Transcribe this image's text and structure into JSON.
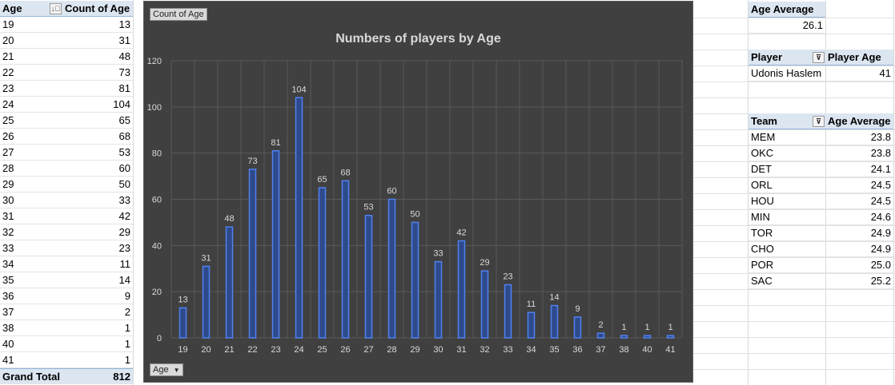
{
  "age_table": {
    "header_age": "Age",
    "header_count": "Count of Age",
    "rows": [
      {
        "age": "19",
        "count": "13"
      },
      {
        "age": "20",
        "count": "31"
      },
      {
        "age": "21",
        "count": "48"
      },
      {
        "age": "22",
        "count": "73"
      },
      {
        "age": "23",
        "count": "81"
      },
      {
        "age": "24",
        "count": "104"
      },
      {
        "age": "25",
        "count": "65"
      },
      {
        "age": "26",
        "count": "68"
      },
      {
        "age": "27",
        "count": "53"
      },
      {
        "age": "28",
        "count": "60"
      },
      {
        "age": "29",
        "count": "50"
      },
      {
        "age": "30",
        "count": "33"
      },
      {
        "age": "31",
        "count": "42"
      },
      {
        "age": "32",
        "count": "29"
      },
      {
        "age": "33",
        "count": "23"
      },
      {
        "age": "34",
        "count": "11"
      },
      {
        "age": "35",
        "count": "14"
      },
      {
        "age": "36",
        "count": "9"
      },
      {
        "age": "37",
        "count": "2"
      },
      {
        "age": "38",
        "count": "1"
      },
      {
        "age": "40",
        "count": "1"
      },
      {
        "age": "41",
        "count": "1"
      }
    ],
    "total_label": "Grand Total",
    "total_value": "812"
  },
  "chart": {
    "field_button_value": "Count of Age",
    "field_button_axis": "Age",
    "dropdown_icon": "dropdown-arrow-icon"
  },
  "chart_data": {
    "type": "bar",
    "title": "Numbers of players by Age",
    "categories": [
      "19",
      "20",
      "21",
      "22",
      "23",
      "24",
      "25",
      "26",
      "27",
      "28",
      "29",
      "30",
      "31",
      "32",
      "33",
      "34",
      "35",
      "36",
      "37",
      "38",
      "40",
      "41"
    ],
    "values": [
      13,
      31,
      48,
      73,
      81,
      104,
      65,
      68,
      53,
      60,
      50,
      33,
      42,
      29,
      23,
      11,
      14,
      9,
      2,
      1,
      1,
      1
    ],
    "ylim": [
      0,
      120
    ],
    "yticks": [
      "0",
      "20",
      "40",
      "60",
      "80",
      "100",
      "120"
    ],
    "grid": true,
    "legend": "none",
    "colors": {
      "background": "#404040",
      "bar_fill": "#2e4a8a",
      "bar_edge": "#4f81f0",
      "text": "#d9d9d9",
      "grid": "#595959"
    }
  },
  "age_average": {
    "label": "Age Average",
    "value": "26.1"
  },
  "player_table": {
    "header_player": "Player",
    "header_age": "Player Age",
    "rows": [
      {
        "player": "Udonis Haslem",
        "age": "41"
      }
    ]
  },
  "team_table": {
    "header_team": "Team",
    "header_avg": "Age Average",
    "rows": [
      {
        "team": "MEM",
        "avg": "23.8"
      },
      {
        "team": "OKC",
        "avg": "23.8"
      },
      {
        "team": "DET",
        "avg": "24.1"
      },
      {
        "team": "ORL",
        "avg": "24.5"
      },
      {
        "team": "HOU",
        "avg": "24.5"
      },
      {
        "team": "MIN",
        "avg": "24.6"
      },
      {
        "team": "TOR",
        "avg": "24.9"
      },
      {
        "team": "CHO",
        "avg": "24.9"
      },
      {
        "team": "POR",
        "avg": "25.0"
      },
      {
        "team": "SAC",
        "avg": "25.2"
      }
    ]
  },
  "icons": {
    "sort_icon": "sort-icon",
    "filter_icon": "filter-icon"
  }
}
